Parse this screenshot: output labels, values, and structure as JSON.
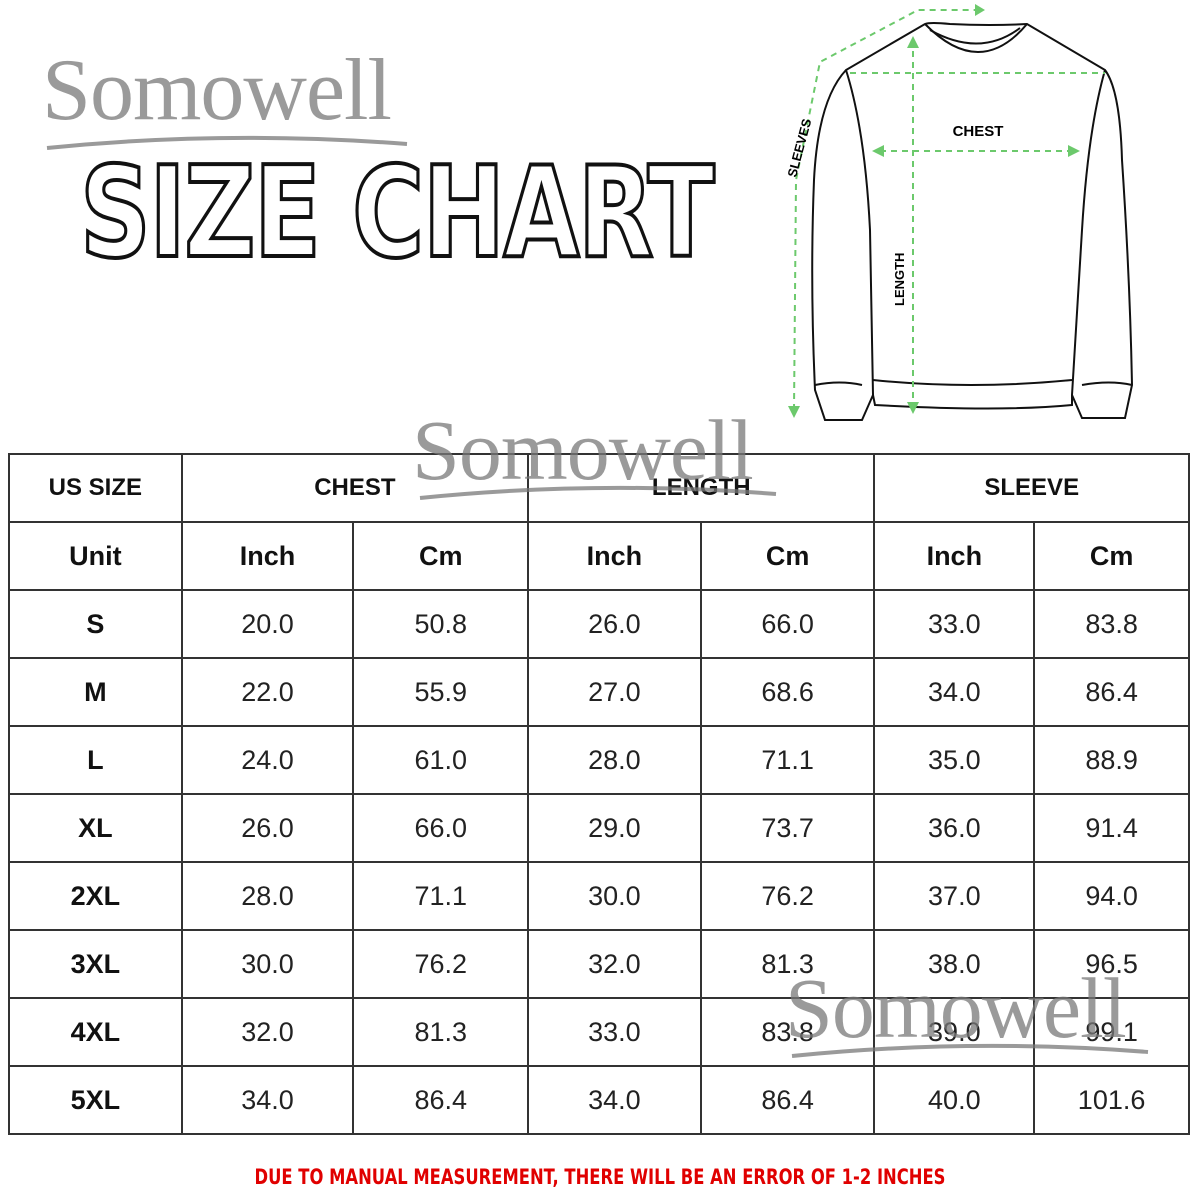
{
  "brand": "Somowell",
  "title": "SIZE CHART",
  "diagram": {
    "chest": "CHEST",
    "sleeves": "SLEEVES",
    "length": "LENGTH",
    "arrow_color": "#6cc96c"
  },
  "table": {
    "size_header": "US SIZE",
    "groups": [
      "CHEST",
      "LENGTH",
      "SLEEVE"
    ],
    "unit_label": "Unit",
    "units": [
      "Inch",
      "Cm",
      "Inch",
      "Cm",
      "Inch",
      "Cm"
    ],
    "rows": [
      {
        "size": "S",
        "values": [
          "20.0",
          "50.8",
          "26.0",
          "66.0",
          "33.0",
          "83.8"
        ]
      },
      {
        "size": "M",
        "values": [
          "22.0",
          "55.9",
          "27.0",
          "68.6",
          "34.0",
          "86.4"
        ]
      },
      {
        "size": "L",
        "values": [
          "24.0",
          "61.0",
          "28.0",
          "71.1",
          "35.0",
          "88.9"
        ]
      },
      {
        "size": "XL",
        "values": [
          "26.0",
          "66.0",
          "29.0",
          "73.7",
          "36.0",
          "91.4"
        ]
      },
      {
        "size": "2XL",
        "values": [
          "28.0",
          "71.1",
          "30.0",
          "76.2",
          "37.0",
          "94.0"
        ]
      },
      {
        "size": "3XL",
        "values": [
          "30.0",
          "76.2",
          "32.0",
          "81.3",
          "38.0",
          "96.5"
        ]
      },
      {
        "size": "4XL",
        "values": [
          "32.0",
          "81.3",
          "33.0",
          "83.8",
          "39.0",
          "99.1"
        ]
      },
      {
        "size": "5XL",
        "values": [
          "34.0",
          "86.4",
          "34.0",
          "86.4",
          "40.0",
          "101.6"
        ]
      }
    ]
  },
  "note": "DUE TO MANUAL  MEASUREMENT, THERE WILL BE AN ERROR OF 1-2 INCHES",
  "note_color": "#e00000"
}
